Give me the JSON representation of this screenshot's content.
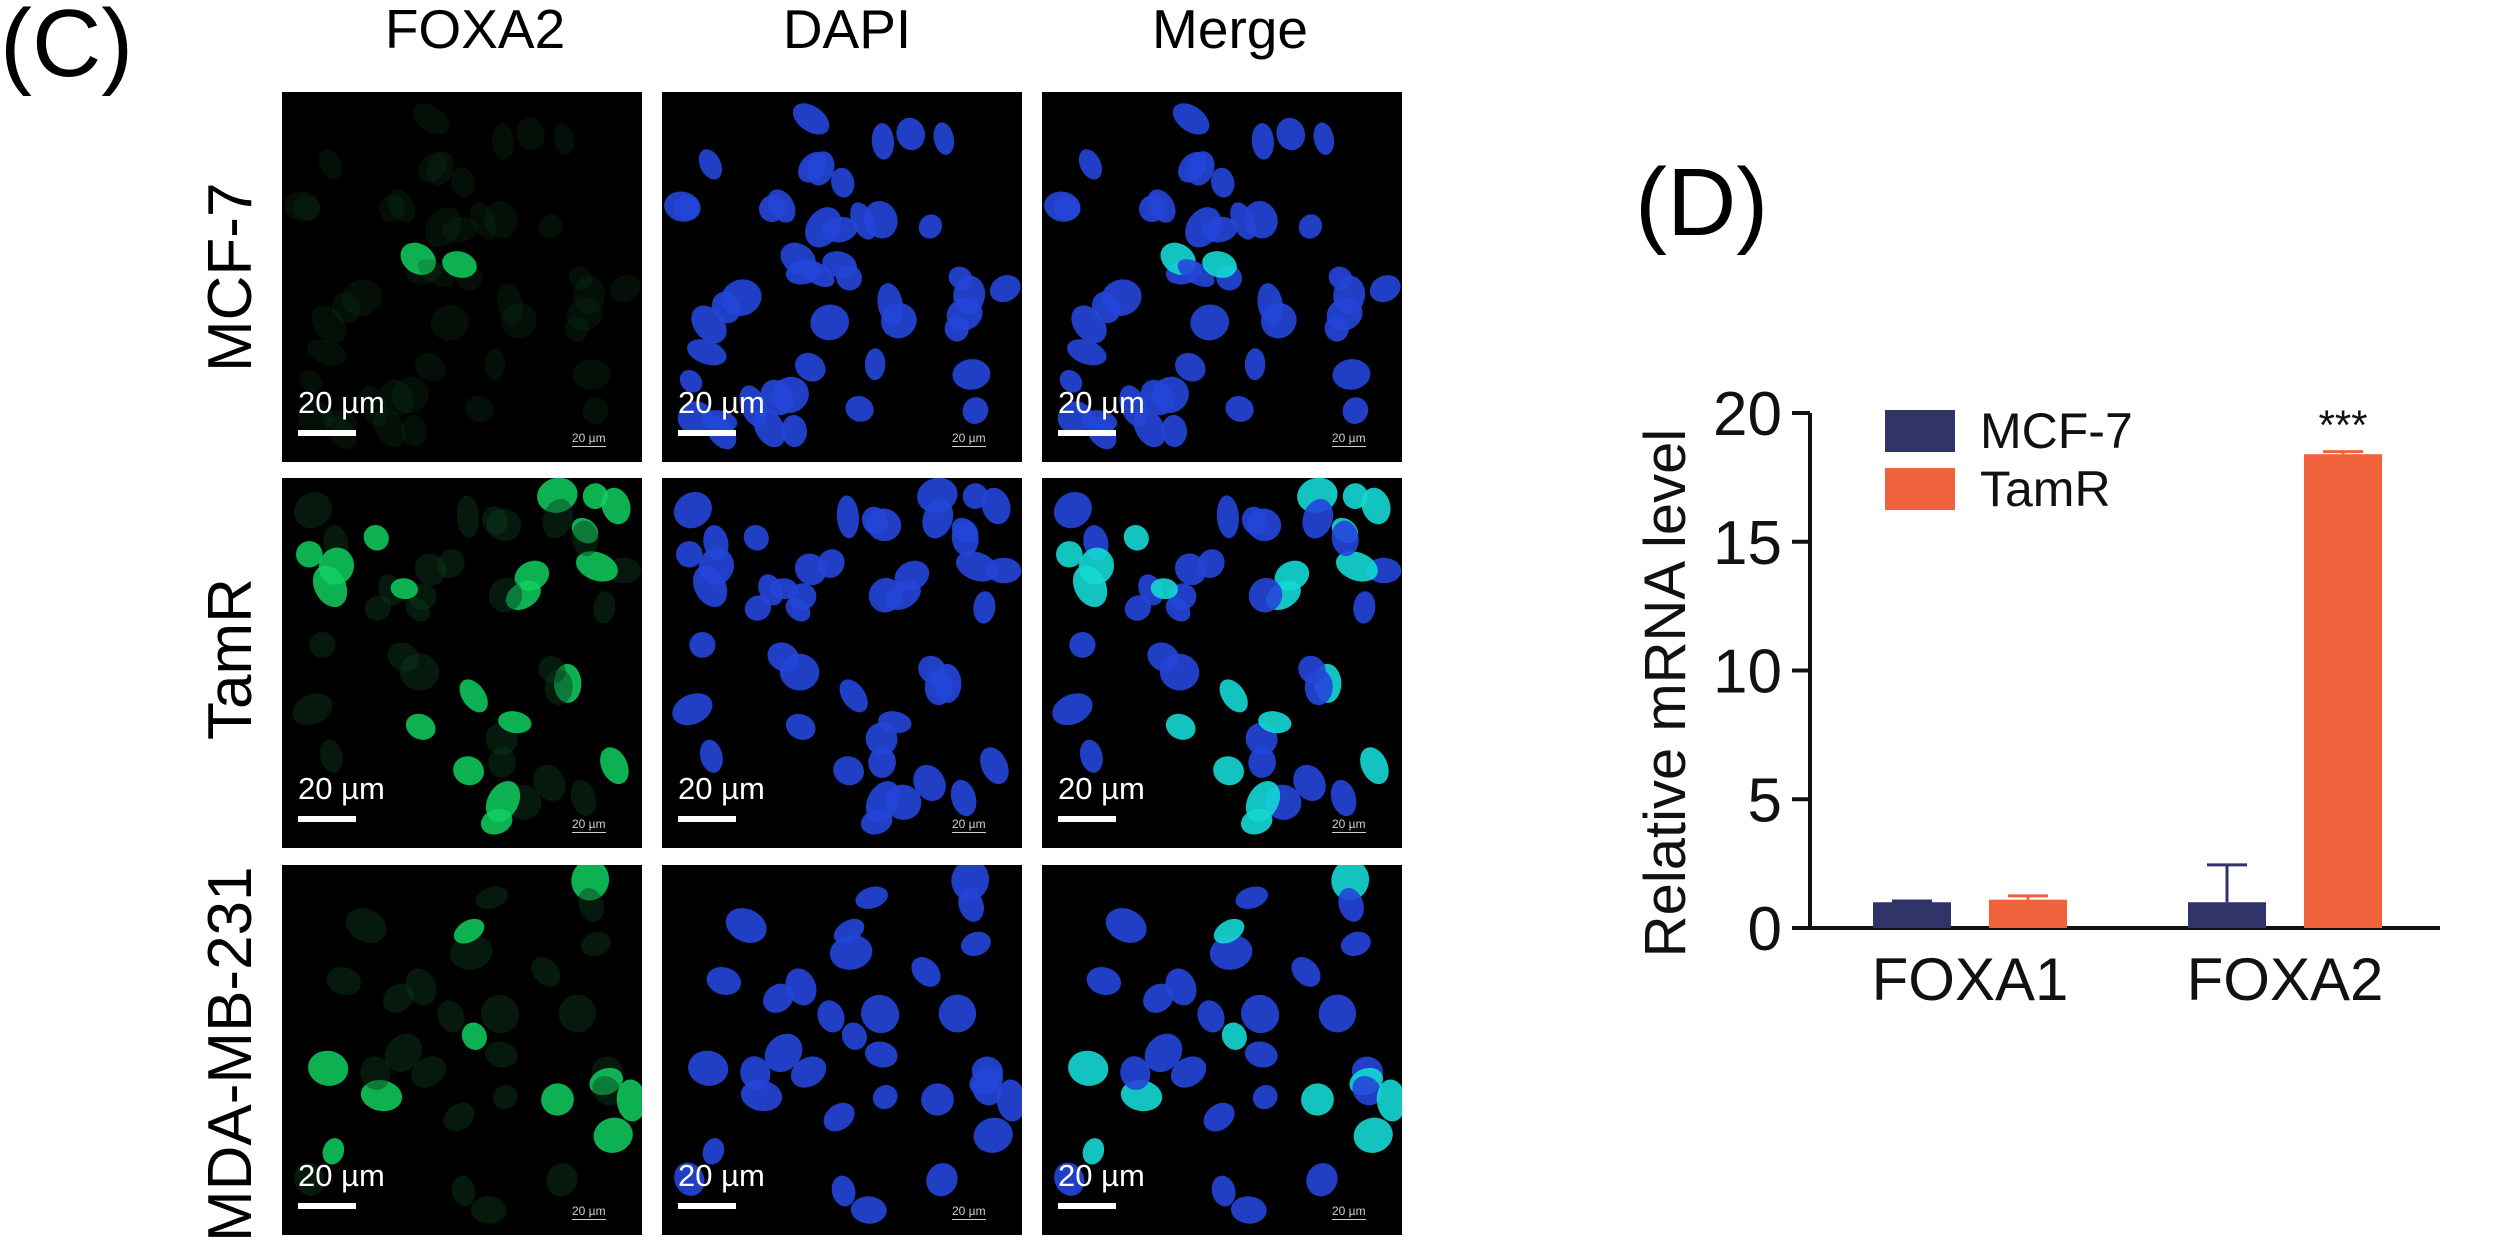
{
  "panel_c": {
    "label": "(C)",
    "columns": [
      "FOXA2",
      "DAPI",
      "Merge"
    ],
    "rows": [
      "MCF-7",
      "TamR",
      "MDA-MB-231"
    ],
    "scale_bar_label": "20 µm",
    "small_scale_label": "20 µm",
    "colors": {
      "dapi": "#2446d9",
      "foxa2": "#11d05f",
      "merge_overlap": "#14d8d4",
      "background": "#000000"
    }
  },
  "panel_d": {
    "label": "(D)"
  },
  "chart_data": {
    "type": "bar",
    "categories": [
      "FOXA1",
      "FOXA2"
    ],
    "series": [
      {
        "name": "MCF-7",
        "values": [
          1.0,
          1.0
        ],
        "errors": [
          0.05,
          1.45
        ],
        "color": "#303468"
      },
      {
        "name": "TamR",
        "values": [
          1.1,
          18.4
        ],
        "errors": [
          0.15,
          0.1
        ],
        "color": "#ef623b"
      }
    ],
    "ylabel": "Relative mRNA level",
    "xlabel": "",
    "ylim": [
      0,
      20
    ],
    "yticks": [
      0,
      5,
      10,
      15,
      20
    ],
    "annotations": [
      {
        "category": "FOXA2",
        "series": "TamR",
        "text": "***"
      }
    ],
    "legend": "top-left",
    "grid": false
  }
}
